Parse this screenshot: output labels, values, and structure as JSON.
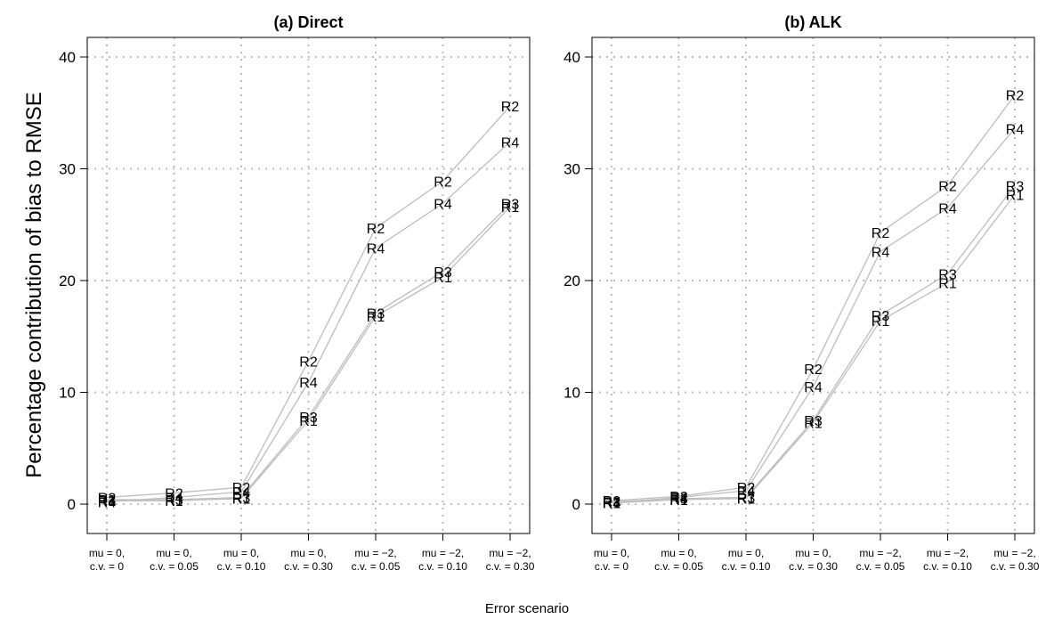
{
  "figure": {
    "ylabel": "Percentage contribution of bias to RMSE",
    "xlabel": "Error scenario"
  },
  "chart_data": [
    {
      "type": "line",
      "title": "(a) Direct",
      "categories": [
        [
          "mu = 0,",
          "c.v. = 0"
        ],
        [
          "mu = 0,",
          "c.v. = 0.05"
        ],
        [
          "mu = 0,",
          "c.v. = 0.10"
        ],
        [
          "mu = 0,",
          "c.v. = 0.30"
        ],
        [
          "mu = −2,",
          "c.v. = 0.05"
        ],
        [
          "mu = −2,",
          "c.v. = 0.10"
        ],
        [
          "mu = −2,",
          "c.v. = 0.30"
        ]
      ],
      "ylim": [
        0,
        40
      ],
      "yticks": [
        0,
        10,
        20,
        30,
        40
      ],
      "grid": true,
      "line_color": "#bdbdbd",
      "grid_color": "#bdbdbd",
      "series": [
        {
          "name": "R1",
          "values": [
            0.3,
            0.3,
            0.5,
            7.5,
            16.8,
            20.3,
            26.6
          ]
        },
        {
          "name": "R2",
          "values": [
            0.6,
            1.0,
            1.5,
            12.8,
            24.7,
            28.9,
            35.6
          ]
        },
        {
          "name": "R3",
          "values": [
            0.4,
            0.4,
            0.6,
            7.8,
            17.1,
            20.8,
            26.9
          ]
        },
        {
          "name": "R4",
          "values": [
            0.2,
            0.6,
            1.1,
            10.9,
            22.9,
            26.9,
            32.4
          ]
        }
      ]
    },
    {
      "type": "line",
      "title": "(b) ALK",
      "categories": [
        [
          "mu = 0,",
          "c.v. = 0"
        ],
        [
          "mu = 0,",
          "c.v. = 0.05"
        ],
        [
          "mu = 0,",
          "c.v. = 0.10"
        ],
        [
          "mu = 0,",
          "c.v. = 0.30"
        ],
        [
          "mu = −2,",
          "c.v. = 0.05"
        ],
        [
          "mu = −2,",
          "c.v. = 0.10"
        ],
        [
          "mu = −2,",
          "c.v. = 0.30"
        ]
      ],
      "ylim": [
        0,
        40
      ],
      "yticks": [
        0,
        10,
        20,
        30,
        40
      ],
      "grid": true,
      "line_color": "#bdbdbd",
      "grid_color": "#bdbdbd",
      "series": [
        {
          "name": "R1",
          "values": [
            0.1,
            0.4,
            0.5,
            7.3,
            16.4,
            19.8,
            27.7
          ]
        },
        {
          "name": "R2",
          "values": [
            0.3,
            0.7,
            1.5,
            12.1,
            24.3,
            28.5,
            36.6
          ]
        },
        {
          "name": "R3",
          "values": [
            0.2,
            0.5,
            0.6,
            7.5,
            16.9,
            20.6,
            28.5
          ]
        },
        {
          "name": "R4",
          "values": [
            0.1,
            0.6,
            1.2,
            10.5,
            22.6,
            26.5,
            33.6
          ]
        }
      ]
    }
  ]
}
